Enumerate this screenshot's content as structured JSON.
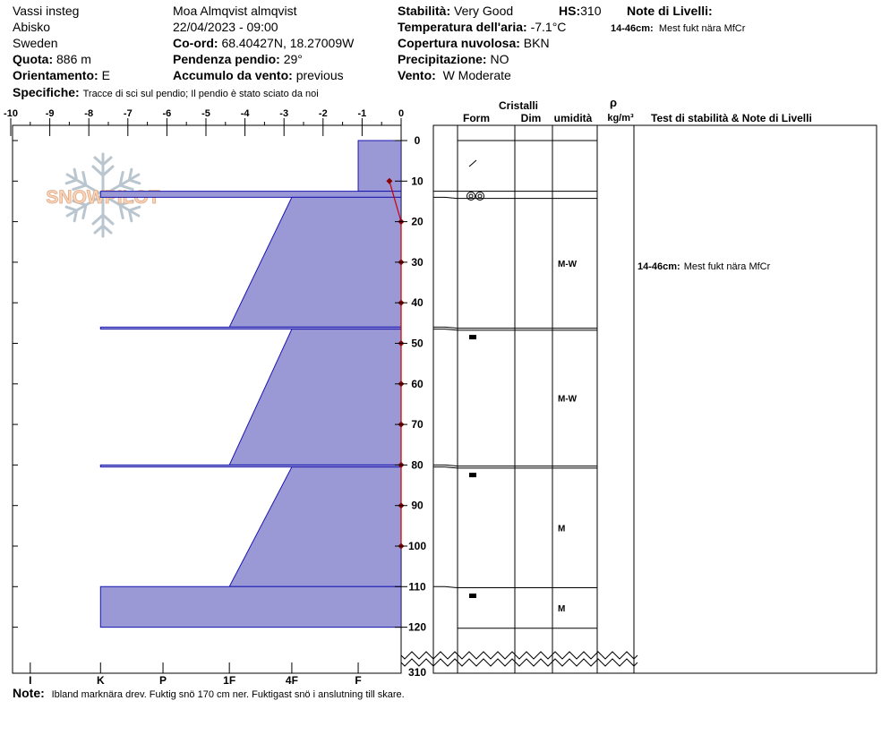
{
  "header": {
    "location": "Vassi insteg",
    "region": "Abisko",
    "country": "Sweden",
    "elevation_label": "Quota:",
    "elevation_value": "886 m",
    "aspect_label": "Orientamento:",
    "aspect_value": "E",
    "observer": "Moa Almqvist almqvist",
    "datetime": "22/04/2023 - 09:00",
    "coord_label": "Co-ord:",
    "coord_value": "68.40427N, 18.27009W",
    "slope_label": "Pendenza pendio:",
    "slope_value": "29°",
    "wind_loading_label": "Accumulo da vento:",
    "wind_loading_value": "previous",
    "stability_label": "Stabilità:",
    "stability_value": "Very Good",
    "hs_label": "HS:",
    "hs_value": "310",
    "air_temp_label": "Temperatura dell'aria:",
    "air_temp_value": "-7.1°C",
    "sky_label": "Copertura nuvolosa:",
    "sky_value": "BKN",
    "precip_label": "Precipitazione:",
    "precip_value": "NO",
    "wind_label": "Vento:",
    "wind_value": "W Moderate",
    "layer_notes_label": "Note di Livelli:",
    "layer_notes_range": "14-46cm:",
    "layer_notes_text": "Mest fukt nära MfCr",
    "specifics_label": "Specifiche:",
    "specifics_text": "Tracce di sci sul pendio;  Il pendio è stato sciato da noi"
  },
  "columns": {
    "crystals": "Cristalli",
    "form": "Form",
    "dim": "Dim",
    "humidity": "umidità",
    "rho": "ρ",
    "density_unit": "kg/m³",
    "tests": "Test di stabilità & Note di Livelli"
  },
  "watermark": "SNOWPILOT",
  "note": {
    "label": "Note:",
    "text": "Ibland marknära drev. Fuktig snö 170 cm ner. Fuktigast snö i anslutning till skare."
  },
  "chart_data": {
    "type": "snow_profile",
    "temperature_axis": {
      "ticks": [
        -10,
        -9,
        -8,
        -7,
        -6,
        -5,
        -4,
        -3,
        -2,
        -1,
        0
      ],
      "range": [
        -10,
        0
      ]
    },
    "hardness_axis": {
      "labels": [
        "I",
        "K",
        "P",
        "1F",
        "4F",
        "F"
      ]
    },
    "depth_axis": {
      "ticks": [
        0,
        10,
        20,
        30,
        40,
        50,
        60,
        70,
        80,
        90,
        100,
        110,
        120
      ],
      "break_label": "310",
      "range": [
        0,
        120
      ]
    },
    "layers": [
      {
        "top": 0,
        "bottom": 12.5,
        "hardness_top": 1.1,
        "hardness_bottom": 1.1,
        "grain": "precipitation-particles-icon",
        "moisture": ""
      },
      {
        "top": 12.5,
        "bottom": 14,
        "hardness_top": 7.7,
        "hardness_bottom": 7.7,
        "grain": "melt-forms-icon",
        "moisture": ""
      },
      {
        "top": 14,
        "bottom": 46,
        "hardness_top": 2.8,
        "hardness_bottom": 4.4,
        "grain": "",
        "moisture": "M-W"
      },
      {
        "top": 46,
        "bottom": 46.5,
        "hardness_top": 7.7,
        "hardness_bottom": 7.7,
        "grain": "melt-freeze-crust-icon",
        "moisture": ""
      },
      {
        "top": 46.5,
        "bottom": 80,
        "hardness_top": 2.8,
        "hardness_bottom": 4.4,
        "grain": "",
        "moisture": "M-W"
      },
      {
        "top": 80,
        "bottom": 80.5,
        "hardness_top": 7.7,
        "hardness_bottom": 7.7,
        "grain": "melt-freeze-crust-icon",
        "moisture": ""
      },
      {
        "top": 80.5,
        "bottom": 110,
        "hardness_top": 2.8,
        "hardness_bottom": 4.4,
        "grain": "",
        "moisture": "M"
      },
      {
        "top": 110,
        "bottom": 120,
        "hardness_top": 7.7,
        "hardness_bottom": 7.7,
        "grain": "melt-freeze-crust-icon",
        "moisture": "M"
      }
    ],
    "temperature_profile": [
      {
        "depth": 10,
        "temp": -0.3
      },
      {
        "depth": 20,
        "temp": 0
      },
      {
        "depth": 30,
        "temp": 0
      },
      {
        "depth": 40,
        "temp": 0
      },
      {
        "depth": 50,
        "temp": 0
      },
      {
        "depth": 60,
        "temp": 0
      },
      {
        "depth": 70,
        "temp": 0
      },
      {
        "depth": 80,
        "temp": 0
      },
      {
        "depth": 90,
        "temp": 0
      },
      {
        "depth": 100,
        "temp": 0
      }
    ],
    "colors": {
      "fill": "#9b98d6",
      "outline": "#1a16b0",
      "temp_line": "#cc0000",
      "temp_marker": "#8b0000"
    }
  }
}
